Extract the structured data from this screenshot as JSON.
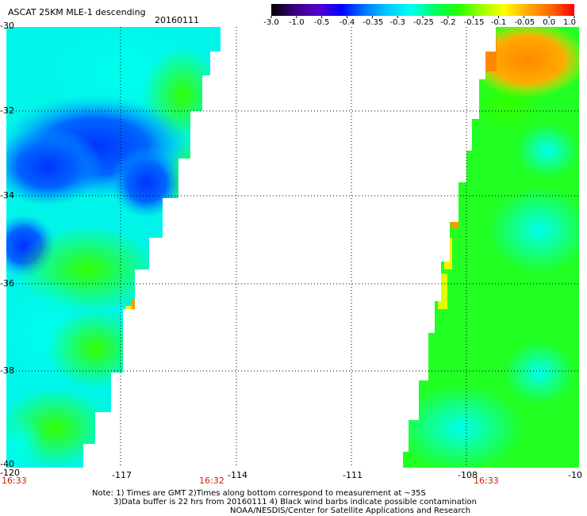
{
  "title": "ASCAT 25KM MLE-1 descending",
  "date": "20160111",
  "colorbar": {
    "labels": [
      "-3.0",
      "-1.0",
      "-0.5",
      "-0.4",
      "-0.35",
      "-0.3",
      "-0.25",
      "-0.2",
      "-0.15",
      "-0.1",
      "-0.05",
      "0.0",
      "1.0"
    ],
    "colors": [
      "#000000",
      "#3a0080",
      "#5500cc",
      "#0000ff",
      "#0077ff",
      "#00ccff",
      "#00ffee",
      "#00ff66",
      "#22ff00",
      "#99ff00",
      "#ffff00",
      "#ffaa00",
      "#ff6600",
      "#ff0000"
    ]
  },
  "lat_labels": [
    "-30",
    "-32",
    "-34",
    "-36",
    "-38",
    "-40"
  ],
  "lon_labels": [
    "-120",
    "-117",
    "-114",
    "-111",
    "-108",
    "-10"
  ],
  "time_labels": [
    "16:33",
    "16:32",
    "16:33"
  ],
  "notes": [
    "Note: 1) Times are GMT 2)Times along bottom correspond to measurement at ~35S",
    "3)Data buffer is 22 hrs from 20160111 4) Black wind barbs indicate possible contamination",
    "NOAA/NESDIS/Center for Satellite Applications and Research"
  ]
}
